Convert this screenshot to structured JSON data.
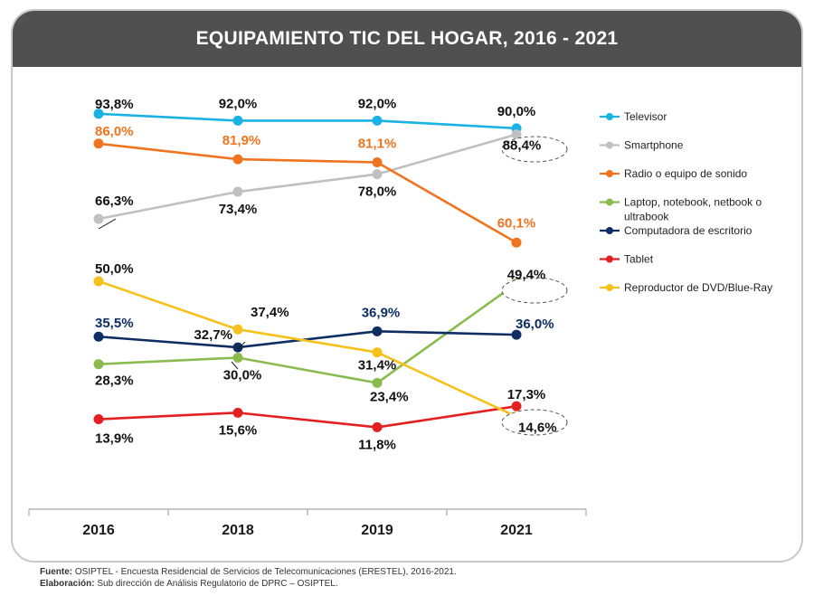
{
  "chart_data": {
    "type": "line",
    "title": "EQUIPAMIENTO TIC DEL HOGAR, 2016 - 2021",
    "categories": [
      "2016",
      "2018",
      "2019",
      "2021"
    ],
    "xlabel": "",
    "ylabel": "",
    "ylim": [
      0,
      100
    ],
    "grid": false,
    "legend_position": "right",
    "series": [
      {
        "name": "Televisor",
        "color": "#1ab2e3",
        "values": [
          93.8,
          92.0,
          92.0,
          90.0
        ],
        "labels": [
          "93,8%",
          "92,0%",
          "92,0%",
          "90,0%"
        ]
      },
      {
        "name": "Smartphone",
        "color": "#c0c0c0",
        "values": [
          66.3,
          73.4,
          78.0,
          88.4
        ],
        "labels": [
          "66,3%",
          "73,4%",
          "78,0%",
          "88,4%"
        ]
      },
      {
        "name": "Radio o equipo de sonido",
        "color": "#f07320",
        "values": [
          86.0,
          81.9,
          81.1,
          60.1
        ],
        "labels": [
          "86,0%",
          "81,9%",
          "81,1%",
          "60,1%"
        ]
      },
      {
        "name": "Laptop, notebook, netbook o ultrabook",
        "color": "#8bbb4f",
        "values": [
          28.3,
          30.0,
          23.4,
          49.4
        ],
        "labels": [
          "28,3%",
          "30,0%",
          "23,4%",
          "49,4%"
        ]
      },
      {
        "name": "Computadora de escritorio",
        "color": "#0d2d63",
        "values": [
          35.5,
          32.7,
          36.9,
          36.0
        ],
        "labels": [
          "35,5%",
          "32,7%",
          "36,9%",
          "36,0%"
        ]
      },
      {
        "name": "Tablet",
        "color": "#e41f1f",
        "values": [
          13.9,
          15.6,
          11.8,
          17.3
        ],
        "labels": [
          "13,9%",
          "15,6%",
          "11,8%",
          "17,3%"
        ]
      },
      {
        "name": "Reproductor de DVD/Blue-Ray",
        "color": "#f6c11a",
        "values": [
          50.0,
          37.4,
          31.4,
          14.6
        ],
        "labels": [
          "50,0%",
          "37,4%",
          "31,4%",
          "14,6%"
        ]
      }
    ]
  },
  "footer": {
    "source_label": "Fuente:",
    "source_text": " OSIPTEL - Encuesta Residencial de Servicios de Telecomunicaciones (ERESTEL), 2016-2021.",
    "credit_label": "Elaboración:",
    "credit_text": " Sub dirección de Análisis Regulatorio de DPRC – OSIPTEL."
  }
}
